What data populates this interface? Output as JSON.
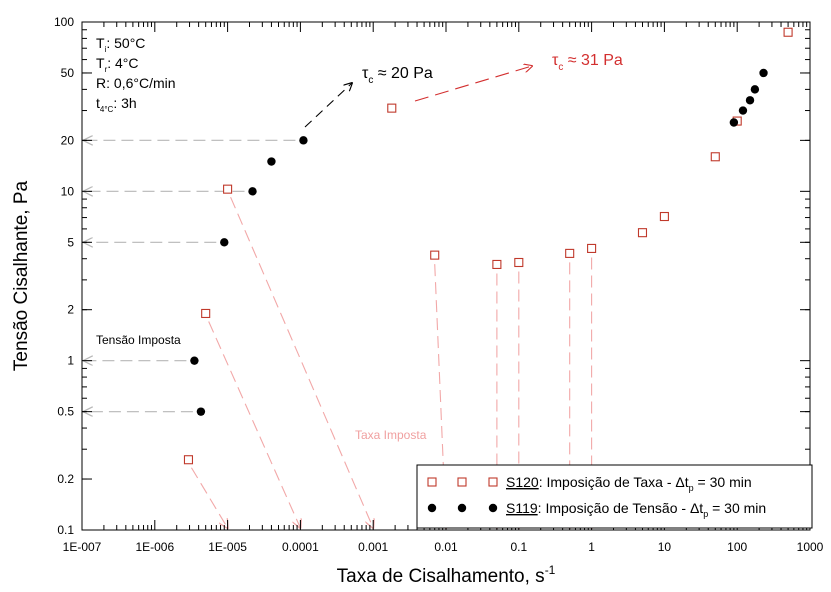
{
  "chart_data": {
    "type": "scatter",
    "xlabel": "Taxa de Cisalhamento, s",
    "xlabel_sup": "-1",
    "ylabel": "Tensão Cisalhante, Pa",
    "x_scale": "log",
    "y_scale": "log",
    "xlim": [
      1e-07,
      1000
    ],
    "ylim": [
      0.1,
      100
    ],
    "x_ticks": [
      {
        "value": 1e-07,
        "label": "1E-007"
      },
      {
        "value": 1e-06,
        "label": "1E-006"
      },
      {
        "value": 1e-05,
        "label": "1E-005"
      },
      {
        "value": 0.0001,
        "label": "0.0001"
      },
      {
        "value": 0.001,
        "label": "0.001"
      },
      {
        "value": 0.01,
        "label": "0.01"
      },
      {
        "value": 0.1,
        "label": "0.1"
      },
      {
        "value": 1,
        "label": "1"
      },
      {
        "value": 10,
        "label": "10"
      },
      {
        "value": 100,
        "label": "100"
      },
      {
        "value": 1000,
        "label": "1000"
      }
    ],
    "y_ticks": [
      {
        "value": 0.1,
        "label": "0.1"
      },
      {
        "value": 0.2,
        "label": "0.2"
      },
      {
        "value": 0.5,
        "label": "0.5"
      },
      {
        "value": 1,
        "label": "1"
      },
      {
        "value": 2,
        "label": "2"
      },
      {
        "value": 5,
        "label": "5"
      },
      {
        "value": 10,
        "label": "10"
      },
      {
        "value": 20,
        "label": "20"
      },
      {
        "value": 50,
        "label": "50"
      },
      {
        "value": 100,
        "label": "100"
      }
    ],
    "series": [
      {
        "name_underlined": "S120",
        "name_rest": ": Imposição de Taxa - Δt",
        "name_sub": "p",
        "name_tail": " = 30 min",
        "marker": "open-square",
        "color": "#c0392b",
        "points": [
          [
            2.9e-06,
            0.26
          ],
          [
            5e-06,
            1.9
          ],
          [
            1e-05,
            10.3
          ],
          [
            0.0018,
            31
          ],
          [
            0.007,
            4.2
          ],
          [
            0.05,
            3.7
          ],
          [
            0.1,
            3.8
          ],
          [
            0.5,
            4.3
          ],
          [
            1.0,
            4.6
          ],
          [
            5.0,
            5.7
          ],
          [
            10.0,
            7.1
          ],
          [
            50.0,
            16
          ],
          [
            100.0,
            26
          ],
          [
            500.0,
            87
          ]
        ]
      },
      {
        "name_underlined": "S119",
        "name_rest": ": Imposição de Tensão - Δt",
        "name_sub": "p",
        "name_tail": " = 30 min",
        "marker": "filled-circle",
        "color": "#000000",
        "points": [
          [
            3.5e-06,
            1.0
          ],
          [
            4.3e-06,
            0.5
          ],
          [
            9e-06,
            5.0
          ],
          [
            2.2e-05,
            10.0
          ],
          [
            4e-05,
            15.0
          ],
          [
            0.00011,
            20.0
          ],
          [
            90.0,
            25.5
          ],
          [
            120.0,
            30.0
          ],
          [
            150.0,
            34.5
          ],
          [
            175.0,
            40.0
          ],
          [
            230.0,
            50.0
          ]
        ]
      }
    ],
    "conditions": [
      {
        "main": "T",
        "sub": "i",
        "rest": ": 50°C"
      },
      {
        "main": "T",
        "sub": "r",
        "rest": ": 4°C"
      },
      {
        "main": "R",
        "sub": "",
        "rest": ": 0,6°C/min"
      },
      {
        "main": "t",
        "sub": "4°C",
        "rest": ": 3h"
      }
    ],
    "annotations": {
      "tau_black": {
        "symbol": "τ",
        "sub": "c",
        "rest": " ≈ 20 Pa",
        "color": "#000000"
      },
      "tau_red": {
        "symbol": "τ",
        "sub": "c",
        "rest": " ≈ 31 Pa",
        "color": "#d32f2f"
      },
      "tensao_imposta": "Tensão Imposta",
      "taxa_imposta": "Taxa Imposta"
    },
    "imposed_stress_levels": [
      0.5,
      1,
      5,
      10,
      20
    ],
    "imposed_rate_levels": [
      1e-05,
      0.0001,
      0.001,
      0.01,
      0.05,
      0.1,
      0.5,
      1
    ],
    "grid": false,
    "legend_position": "bottom-right"
  }
}
